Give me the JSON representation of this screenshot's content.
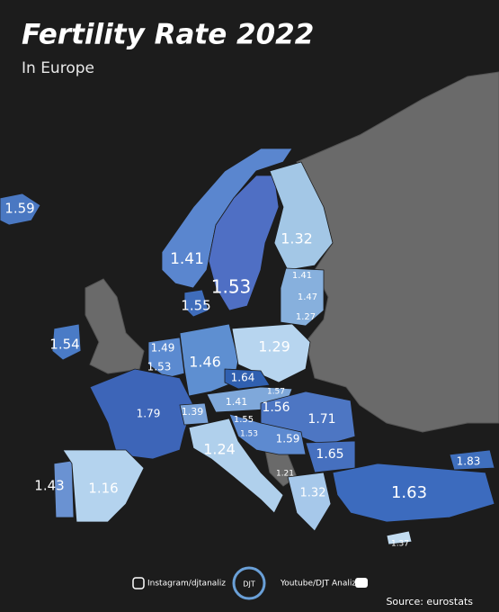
{
  "header": {
    "title": "Fertility Rate 2022",
    "subtitle": "In Europe"
  },
  "map": {
    "labels": [
      "1.59",
      "1.41",
      "1.53",
      "1.32",
      "1.41",
      "1.47",
      "1.27",
      "1.55",
      "1.54",
      "1.49",
      "1.53",
      "1.46",
      "1.29",
      "1.64",
      "1.57",
      "1.41",
      "1.56",
      "1.71",
      "1.79",
      "1.39",
      "1.55",
      "1.53",
      "1.59",
      "1.65",
      "1.24",
      "1.21",
      "1.32",
      "1.63",
      "1.83",
      "1.43",
      "1.16",
      "1.37"
    ]
  },
  "footer": {
    "instagram": "Instagram/djtanaliz",
    "logo": "DJT",
    "youtube": "Youtube/DJT Analiz",
    "source": "Source: eurostats"
  }
}
